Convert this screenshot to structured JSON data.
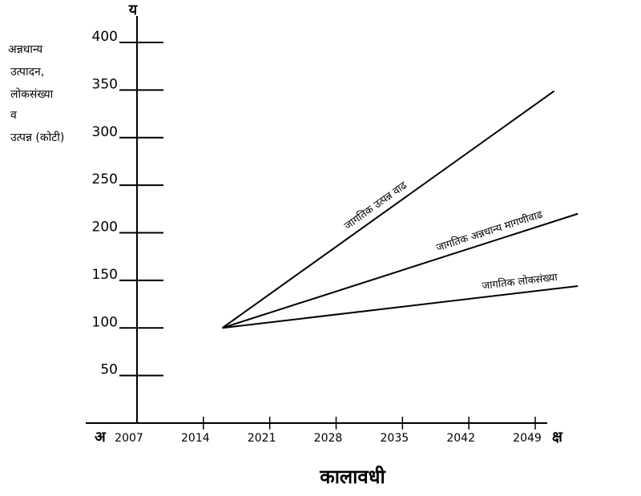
{
  "chart_data": {
    "type": "line",
    "xlabel": "कालावधी",
    "ylabel_lines": [
      "अन्नधान्य",
      "उत्पादन,",
      "लोकसंख्या",
      "व",
      "उत्पन्न (कोटी)"
    ],
    "y_axis_letter": "य",
    "x_axis_letter": "क्ष",
    "origin_letter": "अ",
    "x_ticks": [
      "2007",
      "2014",
      "2021",
      "2028",
      "2035",
      "2042",
      "2049"
    ],
    "y_ticks": [
      50,
      100,
      150,
      200,
      250,
      300,
      350,
      400
    ],
    "xlim": [
      2007,
      2051
    ],
    "ylim": [
      0,
      420
    ],
    "grid": false,
    "series": [
      {
        "name": "जागतिक उत्पन्न वाढ",
        "x": [
          2016,
          2051
        ],
        "y": [
          100,
          349
        ]
      },
      {
        "name": "जागतिक अन्नधान्य मागणीवाढ",
        "x": [
          2016,
          2053.5
        ],
        "y": [
          100,
          220
        ]
      },
      {
        "name": "जागतिक लोकसंख्या",
        "x": [
          2016,
          2053.5
        ],
        "y": [
          100,
          144
        ]
      }
    ]
  }
}
